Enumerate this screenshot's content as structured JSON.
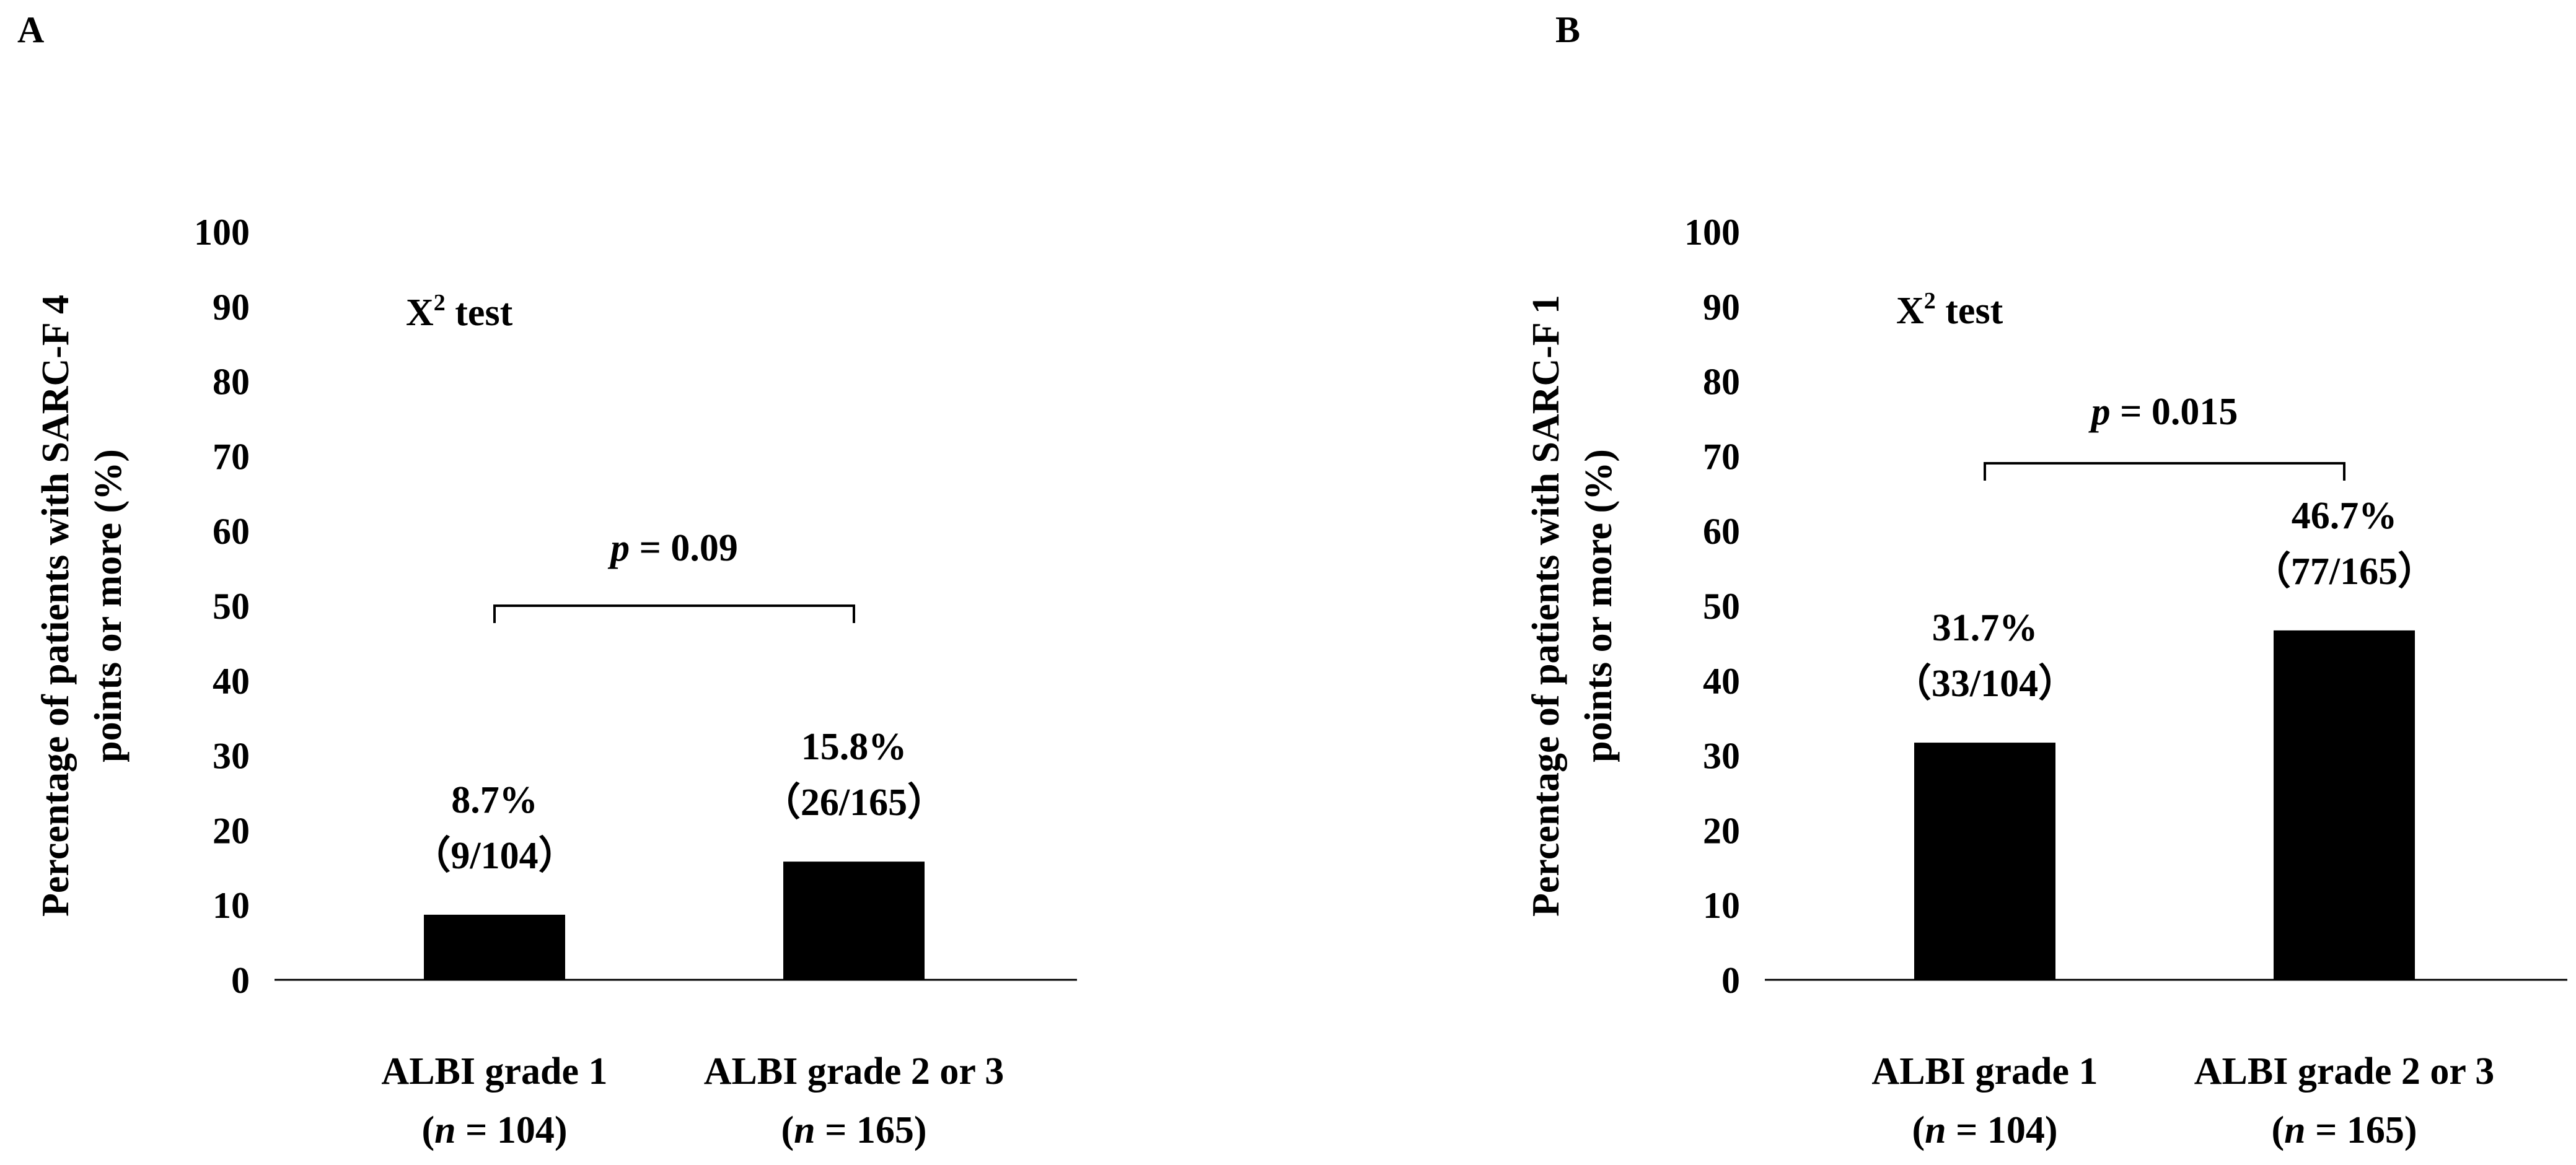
{
  "panels": [
    {
      "letter": "A",
      "ylabel_line1": "Percentage of patients with SARC-F 4",
      "ylabel_line2": "points or more (%)",
      "test_label": "X",
      "test_label_sup": "2",
      "test_label_rest": " test",
      "p_label": "p",
      "p_value": " = 0.09"
    },
    {
      "letter": "B",
      "ylabel_line1": "Percentage of patients with SARC-F 1",
      "ylabel_line2": "points or more (%)",
      "test_label": "X",
      "test_label_sup": "2",
      "test_label_rest": " test",
      "p_label": "p",
      "p_value": " = 0.015"
    }
  ],
  "chart_data": [
    {
      "type": "bar",
      "panel": "A",
      "categories": [
        "ALBI grade 1",
        "ALBI grade 2 or 3"
      ],
      "category_n": [
        "(n = 104)",
        "(n = 165)"
      ],
      "values": [
        8.7,
        15.8
      ],
      "bar_labels": [
        "8.7%",
        "15.8%"
      ],
      "bar_fractions": [
        "（9/104）",
        "（26/165）"
      ],
      "ylabel": "Percentage of patients with SARC-F 4 points or more (%)",
      "ylim": [
        0,
        100
      ],
      "yticks": [
        0,
        10,
        20,
        30,
        40,
        50,
        60,
        70,
        80,
        90,
        100
      ],
      "grid": false,
      "bar_color": "#000000"
    },
    {
      "type": "bar",
      "panel": "B",
      "categories": [
        "ALBI grade 1",
        "ALBI grade 2 or 3"
      ],
      "category_n": [
        "(n = 104)",
        "(n = 165)"
      ],
      "values": [
        31.7,
        46.7
      ],
      "bar_labels": [
        "31.7%",
        "46.7%"
      ],
      "bar_fractions": [
        "（33/104）",
        "（77/165）"
      ],
      "ylabel": "Percentage of patients with SARC-F 1 points or more (%)",
      "ylim": [
        0,
        100
      ],
      "yticks": [
        0,
        10,
        20,
        30,
        40,
        50,
        60,
        70,
        80,
        90,
        100
      ],
      "grid": false,
      "bar_color": "#000000"
    }
  ]
}
